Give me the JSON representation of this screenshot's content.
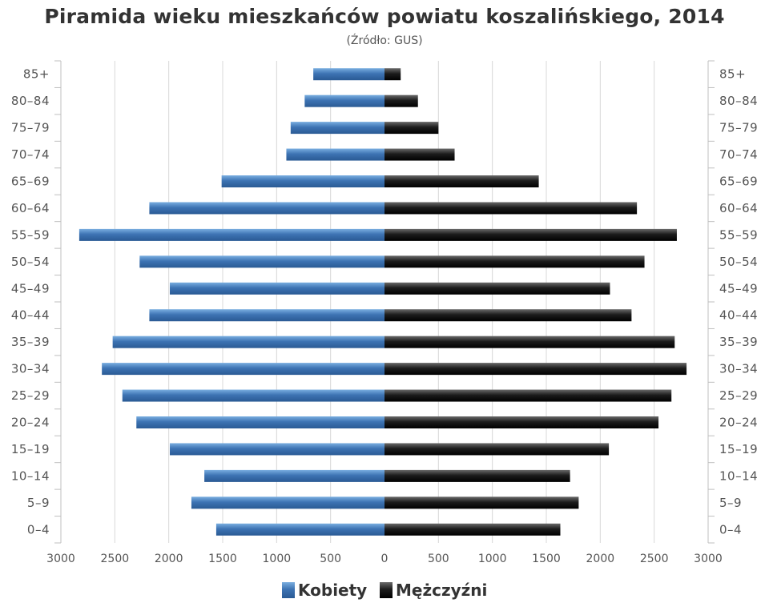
{
  "chart_data": {
    "type": "bar",
    "orientation": "horizontal-pyramid",
    "title": "Piramida wieku mieszkańców powiatu koszalińskiego, 2014",
    "subtitle": "(Źródło: GUS)",
    "categories": [
      "0–4",
      "5–9",
      "10–14",
      "15–19",
      "20–24",
      "25–29",
      "30–34",
      "35–39",
      "40–44",
      "45–49",
      "50–54",
      "55–59",
      "60–64",
      "65–69",
      "70–74",
      "75–79",
      "80–84",
      "85+"
    ],
    "series": [
      {
        "name": "Kobiety",
        "side": "left",
        "color": "#3a6ea8",
        "values": [
          1560,
          1790,
          1670,
          1990,
          2300,
          2430,
          2620,
          2520,
          2180,
          1990,
          2270,
          2830,
          2180,
          1510,
          910,
          870,
          740,
          660
        ]
      },
      {
        "name": "Mężczyźni",
        "side": "right",
        "color": "#1a1a1a",
        "values": [
          1630,
          1800,
          1720,
          2080,
          2540,
          2660,
          2800,
          2690,
          2290,
          2090,
          2410,
          2710,
          2340,
          1430,
          650,
          500,
          310,
          150
        ]
      }
    ],
    "xlim": [
      -3000,
      3000
    ],
    "x_ticks": [
      "3000",
      "2500",
      "2000",
      "1500",
      "1000",
      "500",
      "0",
      "500",
      "1000",
      "1500",
      "2000",
      "2500",
      "3000"
    ],
    "grid": true,
    "legend_position": "bottom-center"
  }
}
